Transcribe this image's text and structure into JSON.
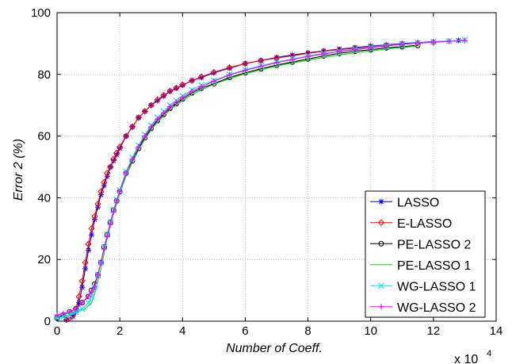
{
  "chart_data": {
    "type": "line",
    "title": "",
    "xlabel": "Number of Coeff.",
    "ylabel": "Error 2 (%)",
    "x_scale_label": "x 10",
    "x_scale_exponent": "4",
    "xlim": [
      0,
      14
    ],
    "ylim": [
      0,
      100
    ],
    "x_ticks": [
      0,
      2,
      4,
      6,
      8,
      10,
      12,
      14
    ],
    "y_ticks": [
      0,
      20,
      40,
      60,
      80,
      100
    ],
    "x_tick_labels": [
      "0",
      "2",
      "4",
      "6",
      "8",
      "10",
      "12",
      "14"
    ],
    "y_tick_labels": [
      "0",
      "20",
      "40",
      "60",
      "80",
      "100"
    ],
    "grid": true,
    "legend_position": "lower-right",
    "series": [
      {
        "name": "LASSO",
        "color": "#0000ff",
        "marker": "star",
        "x": [
          0.3,
          0.5,
          0.6,
          0.7,
          0.8,
          0.9,
          1.0,
          1.1,
          1.2,
          1.3,
          1.4,
          1.5,
          1.6,
          1.7,
          1.8,
          1.9,
          2.0,
          2.2,
          2.4,
          2.6,
          2.8,
          3.0,
          3.2,
          3.4,
          3.6,
          3.8,
          4.0,
          4.3,
          4.6,
          5.0,
          5.5,
          6.0,
          6.5,
          7.0,
          7.5,
          8.0,
          8.5,
          9.0,
          9.5,
          10.0,
          10.5,
          11.0,
          11.5,
          12.0,
          12.5,
          12.8
        ],
        "y": [
          0.5,
          1.5,
          3,
          6,
          11,
          17,
          23,
          28,
          33,
          37,
          41,
          44,
          47,
          50,
          52,
          54,
          56,
          60,
          63,
          66,
          68,
          70,
          71.5,
          73,
          74.5,
          75.5,
          76.5,
          78,
          79,
          80.5,
          82,
          83.5,
          84.5,
          85.5,
          86.3,
          87,
          87.6,
          88.2,
          88.7,
          89.2,
          89.6,
          90,
          90.3,
          90.6,
          90.8,
          91
        ]
      },
      {
        "name": "E-LASSO",
        "color": "#ff0000",
        "marker": "diamond",
        "x": [
          0.3,
          0.4,
          0.5,
          0.6,
          0.7,
          0.8,
          0.9,
          1.0,
          1.1,
          1.2,
          1.3,
          1.4,
          1.5,
          1.6,
          1.7,
          1.8,
          1.9,
          2.0,
          2.2,
          2.4,
          2.6,
          2.8,
          3.0,
          3.2,
          3.4,
          3.6,
          3.8,
          4.0,
          4.3,
          4.6,
          5.0,
          5.5,
          6.0,
          6.5,
          7.0,
          7.5,
          8.0,
          8.5,
          9.0,
          9.5,
          10.0,
          10.5,
          11.0,
          11.5,
          12.0
        ],
        "y": [
          0.5,
          1,
          2,
          4,
          8,
          13,
          19,
          25,
          30,
          34,
          38,
          42,
          45,
          48,
          50,
          52.5,
          54.5,
          56.5,
          60,
          63,
          66,
          68,
          70,
          71.8,
          73.2,
          74.6,
          75.6,
          76.6,
          78,
          79.2,
          80.7,
          82.2,
          83.5,
          84.5,
          85.3,
          86,
          86.8,
          87.5,
          88,
          88.5,
          89,
          89.4,
          89.8,
          90.1,
          90.4
        ]
      },
      {
        "name": "PE-LASSO 2",
        "color": "#000000",
        "marker": "circle",
        "x": [
          0.0,
          0.2,
          0.4,
          0.6,
          0.8,
          1.0,
          1.1,
          1.2,
          1.3,
          1.4,
          1.5,
          1.6,
          1.7,
          1.8,
          1.9,
          2.0,
          2.2,
          2.4,
          2.6,
          2.8,
          3.0,
          3.2,
          3.4,
          3.6,
          3.8,
          4.0,
          4.3,
          4.6,
          5.0,
          5.5,
          6.0,
          6.5,
          7.0,
          7.5,
          8.0,
          8.5,
          9.0,
          9.5,
          10.0,
          10.5,
          11.0,
          11.5
        ],
        "y": [
          1,
          2,
          3,
          4,
          6,
          8,
          10,
          12,
          15,
          19,
          24,
          28,
          32,
          36,
          39,
          42,
          48,
          52,
          56,
          59.5,
          62.5,
          65,
          67,
          69,
          70.5,
          72,
          74,
          75.5,
          77,
          79,
          80.5,
          81.8,
          83,
          84,
          85,
          86,
          86.8,
          87.5,
          88,
          88.6,
          89,
          89.4
        ]
      },
      {
        "name": "PE-LASSO 1",
        "color": "#00dd00",
        "marker": "none",
        "x": [
          0.0,
          0.3,
          0.6,
          0.9,
          1.1,
          1.2,
          1.3,
          1.4,
          1.5,
          1.6,
          1.7,
          1.8,
          1.9,
          2.0,
          2.2,
          2.4,
          2.6,
          2.8,
          3.0,
          3.2,
          3.4,
          3.6,
          3.8,
          4.0,
          4.3,
          4.6,
          5.0,
          5.5,
          6.0,
          6.5,
          7.0,
          7.5,
          8.0,
          8.5,
          9.0,
          9.5,
          10.0,
          10.5,
          11.0,
          11.5
        ],
        "y": [
          2,
          2.5,
          3,
          4,
          6,
          9,
          13,
          17,
          22,
          27,
          31,
          35,
          38,
          41.5,
          47,
          51.5,
          55.5,
          59,
          62,
          64.5,
          66.5,
          68.5,
          70,
          71.5,
          73.5,
          75,
          76.8,
          78.6,
          80.2,
          81.5,
          82.7,
          83.7,
          84.6,
          85.5,
          86.3,
          87,
          87.6,
          88.2,
          88.7,
          89.2
        ]
      },
      {
        "name": "WG-LASSO 1",
        "color": "#00e5ee",
        "marker": "x",
        "x": [
          0.0,
          0.2,
          0.4,
          0.6,
          0.8,
          1.0,
          1.1,
          1.2,
          1.3,
          1.4,
          1.5,
          1.6,
          1.7,
          1.8,
          1.9,
          2.0,
          2.2,
          2.4,
          2.6,
          2.8,
          3.0,
          3.2,
          3.4,
          3.6,
          3.8,
          4.0,
          4.3,
          4.6,
          5.0,
          5.5,
          6.0,
          6.5,
          7.0,
          7.5,
          8.0,
          8.5,
          9.0,
          9.5,
          10.0,
          10.5,
          11.0,
          11.5,
          12.0,
          12.5,
          13.0
        ],
        "y": [
          1,
          1.5,
          2,
          3,
          4,
          6,
          8,
          11,
          15,
          19,
          24,
          28,
          32,
          36,
          39.5,
          42.5,
          48.5,
          53,
          57,
          60.5,
          63.5,
          66,
          68,
          70,
          71.5,
          73,
          75,
          76.5,
          78,
          80,
          81.5,
          82.8,
          84,
          85,
          86,
          86.8,
          87.5,
          88.2,
          88.8,
          89.3,
          89.8,
          90.2,
          90.5,
          90.8,
          91.2
        ]
      },
      {
        "name": "WG-LASSO 2",
        "color": "#ff00ff",
        "marker": "plus",
        "x": [
          0.0,
          0.2,
          0.4,
          0.6,
          0.8,
          1.0,
          1.1,
          1.2,
          1.3,
          1.4,
          1.5,
          1.6,
          1.7,
          1.8,
          1.9,
          2.0,
          2.2,
          2.4,
          2.6,
          2.8,
          3.0,
          3.2,
          3.4,
          3.6,
          3.8,
          4.0,
          4.3,
          4.6,
          5.0,
          5.5,
          6.0,
          6.5,
          7.0,
          7.5,
          8.0,
          8.5,
          9.0,
          9.5,
          10.0,
          10.5,
          11.0,
          11.5,
          12.0,
          12.5,
          13.0
        ],
        "y": [
          2,
          2.5,
          3,
          4,
          6,
          8,
          9.5,
          11,
          15,
          19,
          23.5,
          27.5,
          31.5,
          35.5,
          39,
          42,
          48,
          52.5,
          56.5,
          60,
          63,
          65.5,
          67.5,
          69.5,
          71,
          72.5,
          74.5,
          76,
          77.8,
          79.8,
          81.3,
          82.6,
          83.8,
          84.8,
          85.8,
          86.6,
          87.4,
          88,
          88.6,
          89.2,
          89.7,
          90.1,
          90.4,
          90.7,
          91
        ]
      }
    ]
  }
}
